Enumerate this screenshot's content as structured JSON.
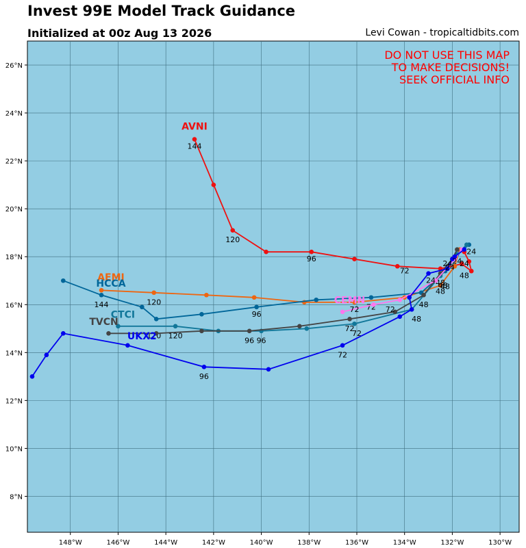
{
  "header": {
    "title": "Invest 99E Model Track Guidance",
    "subtitle": "Initialized at 00z Aug 13 2026",
    "credit": "Levi Cowan - tropicaltidbits.com"
  },
  "warning": [
    "DO NOT USE THIS MAP",
    "TO MAKE DECISIONS!",
    "SEEK OFFICIAL INFO"
  ],
  "colors": {
    "ocean": "#93cde3",
    "grid": "#3f6f80"
  },
  "map": {
    "lon_range": [
      -149.8,
      -129.2
    ],
    "lat_range": [
      6.5,
      27.0
    ],
    "lon_ticks": [
      {
        "v": -148,
        "label": "148°W"
      },
      {
        "v": -146,
        "label": "146°W"
      },
      {
        "v": -144,
        "label": "144°W"
      },
      {
        "v": -142,
        "label": "142°W"
      },
      {
        "v": -140,
        "label": "140°W"
      },
      {
        "v": -138,
        "label": "138°W"
      },
      {
        "v": -136,
        "label": "136°W"
      },
      {
        "v": -134,
        "label": "134°W"
      },
      {
        "v": -132,
        "label": "132°W"
      },
      {
        "v": -130,
        "label": "130°W"
      }
    ],
    "lat_ticks": [
      {
        "v": 8,
        "label": "8°N"
      },
      {
        "v": 10,
        "label": "10°N"
      },
      {
        "v": 12,
        "label": "12°N"
      },
      {
        "v": 14,
        "label": "14°N"
      },
      {
        "v": 16,
        "label": "16°N"
      },
      {
        "v": 18,
        "label": "18°N"
      },
      {
        "v": 20,
        "label": "20°N"
      },
      {
        "v": 22,
        "label": "22°N"
      },
      {
        "v": 24,
        "label": "24°N"
      },
      {
        "v": 26,
        "label": "26°N"
      }
    ]
  },
  "tracks": [
    {
      "name": "AVNI",
      "color": "#ee1111",
      "name_at": [
        -142.8,
        23.3
      ],
      "points": [
        [
          -131.5,
          18.2
        ],
        [
          -131.3,
          17.8
        ],
        [
          -131.2,
          17.4
        ],
        [
          -131.6,
          17.7
        ],
        [
          -132.5,
          17.5
        ],
        [
          -134.3,
          17.6
        ],
        [
          -136.1,
          17.9
        ],
        [
          -137.9,
          18.2
        ],
        [
          -139.8,
          18.2
        ],
        [
          -141.2,
          19.1
        ],
        [
          -142.0,
          21.0
        ],
        [
          -142.8,
          22.9
        ]
      ],
      "labels": [
        {
          "at": [
            -131.5,
            17.1
          ],
          "text": "48"
        },
        {
          "at": [
            -134.0,
            17.3
          ],
          "text": "72"
        },
        {
          "at": [
            -137.9,
            17.8
          ],
          "text": "96"
        },
        {
          "at": [
            -141.2,
            18.6
          ],
          "text": "120"
        },
        {
          "at": [
            -142.8,
            22.5
          ],
          "text": "144"
        }
      ]
    },
    {
      "name": "AEMI",
      "color": "#ee6611",
      "name_at": [
        -146.3,
        17.0
      ],
      "points": [
        [
          -131.7,
          18.3
        ],
        [
          -131.9,
          17.6
        ],
        [
          -132.5,
          16.8
        ],
        [
          -134.0,
          16.3
        ],
        [
          -136.1,
          16.1
        ],
        [
          -138.2,
          16.1
        ],
        [
          -140.3,
          16.3
        ],
        [
          -142.3,
          16.4
        ],
        [
          -144.5,
          16.5
        ],
        [
          -146.7,
          16.6
        ]
      ],
      "labels": [
        {
          "at": [
            -144.5,
            16.0
          ],
          "text": "120"
        }
      ]
    },
    {
      "name": "HCCA",
      "color": "#006699",
      "name_at": [
        -146.3,
        16.75
      ],
      "points": [
        [
          -131.3,
          18.5
        ],
        [
          -131.8,
          18.1
        ],
        [
          -132.3,
          17.4
        ],
        [
          -133.3,
          16.5
        ],
        [
          -135.4,
          16.3
        ],
        [
          -137.7,
          16.2
        ],
        [
          -140.2,
          15.9
        ],
        [
          -142.5,
          15.6
        ],
        [
          -144.4,
          15.4
        ],
        [
          -145.0,
          15.9
        ],
        [
          -146.7,
          16.4
        ],
        [
          -148.3,
          17.0
        ]
      ],
      "labels": [
        {
          "at": [
            -146.7,
            15.9
          ],
          "text": "144"
        },
        {
          "at": [
            -135.4,
            15.8
          ],
          "text": "72"
        },
        {
          "at": [
            -140.2,
            15.5
          ],
          "text": "96"
        }
      ]
    },
    {
      "name": "CTCI",
      "color": "#117799",
      "name_at": [
        -145.8,
        15.45
      ],
      "points": [
        [
          -131.4,
          18.5
        ],
        [
          -131.9,
          18.0
        ],
        [
          -132.5,
          17.2
        ],
        [
          -133.7,
          15.8
        ],
        [
          -136.1,
          15.2
        ],
        [
          -138.1,
          15.0
        ],
        [
          -140.0,
          14.9
        ],
        [
          -141.8,
          14.9
        ],
        [
          -143.6,
          15.1
        ],
        [
          -146.0,
          15.1
        ]
      ],
      "labels": [
        {
          "at": [
            -144.5,
            14.6
          ],
          "text": "120"
        },
        {
          "at": [
            -140.0,
            14.4
          ],
          "text": "96"
        },
        {
          "at": [
            -136.0,
            14.7
          ],
          "text": "72"
        }
      ]
    },
    {
      "name": "TVCN",
      "color": "#444444",
      "name_at": [
        -146.6,
        15.15
      ],
      "points": [
        [
          -131.8,
          18.3
        ],
        [
          -132.0,
          17.9
        ],
        [
          -132.5,
          17.3
        ],
        [
          -133.2,
          16.4
        ],
        [
          -134.4,
          15.7
        ],
        [
          -136.3,
          15.4
        ],
        [
          -138.4,
          15.1
        ],
        [
          -140.5,
          14.9
        ],
        [
          -142.5,
          14.9
        ],
        [
          -144.4,
          14.8
        ],
        [
          -146.4,
          14.8
        ]
      ],
      "labels": [
        {
          "at": [
            -132.5,
            16.8
          ],
          "text": "48"
        },
        {
          "at": [
            -133.2,
            15.9
          ],
          "text": "48"
        },
        {
          "at": [
            -136.3,
            14.9
          ],
          "text": "72"
        },
        {
          "at": [
            -140.5,
            14.4
          ],
          "text": "96"
        },
        {
          "at": [
            -143.6,
            14.6
          ],
          "text": "120"
        }
      ]
    },
    {
      "name": "CEMN",
      "color": "#ff77ee",
      "name_at": [
        -136.3,
        16.05
      ],
      "points": [
        [
          -131.6,
          18.3
        ],
        [
          -131.9,
          17.9
        ],
        [
          -132.7,
          17.0
        ],
        [
          -134.2,
          16.2
        ],
        [
          -135.3,
          16.0
        ],
        [
          -136.6,
          15.7
        ]
      ],
      "labels": [
        {
          "at": [
            -136.1,
            15.7
          ],
          "text": "72"
        },
        {
          "at": [
            -134.6,
            15.7
          ],
          "text": "72"
        },
        {
          "at": [
            -132.5,
            16.45
          ],
          "text": "48"
        }
      ]
    },
    {
      "name": "UKX2",
      "color": "#0000ee",
      "name_at": [
        -145.0,
        14.55
      ],
      "points": [
        [
          -131.5,
          18.3
        ],
        [
          -131.9,
          18.0
        ],
        [
          -132.0,
          17.9
        ],
        [
          -132.2,
          17.5
        ],
        [
          -133.0,
          17.3
        ],
        [
          -133.8,
          16.3
        ],
        [
          -133.7,
          15.8
        ],
        [
          -134.2,
          15.5
        ],
        [
          -136.6,
          14.3
        ],
        [
          -139.7,
          13.3
        ],
        [
          -142.4,
          13.4
        ],
        [
          -145.6,
          14.3
        ],
        [
          -148.3,
          14.8
        ],
        [
          -149.0,
          13.9
        ],
        [
          -149.6,
          13.0
        ]
      ],
      "labels": [
        {
          "at": [
            -132.9,
            16.9
          ],
          "text": "24"
        },
        {
          "at": [
            -133.5,
            15.3
          ],
          "text": "48"
        },
        {
          "at": [
            -136.6,
            13.8
          ],
          "text": "72"
        },
        {
          "at": [
            -142.4,
            12.9
          ],
          "text": "96"
        }
      ]
    }
  ],
  "extra_labels": [
    {
      "at": [
        -131.2,
        18.1
      ],
      "text": "24"
    },
    {
      "at": [
        -131.5,
        17.6
      ],
      "text": "24"
    },
    {
      "at": [
        -132.2,
        17.6
      ],
      "text": "24"
    },
    {
      "at": [
        -131.8,
        17.7
      ],
      "text": "24"
    },
    {
      "at": [
        -132.1,
        17.45
      ],
      "text": "24"
    },
    {
      "at": [
        -132.4,
        16.7
      ],
      "text": "48"
    },
    {
      "at": [
        -132.3,
        16.65
      ],
      "text": "48"
    }
  ]
}
